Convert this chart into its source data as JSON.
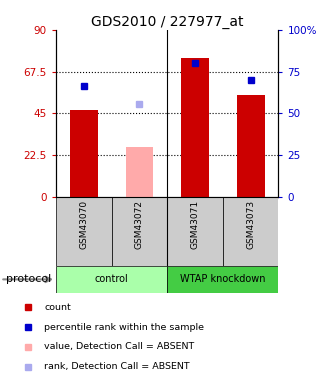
{
  "title": "GDS2010 / 227977_at",
  "samples": [
    "GSM43070",
    "GSM43072",
    "GSM43071",
    "GSM43073"
  ],
  "bar_values": [
    47,
    27,
    75,
    55
  ],
  "bar_colors": [
    "#cc0000",
    "#ffaaaa",
    "#cc0000",
    "#cc0000"
  ],
  "rank_values": [
    60,
    50,
    72,
    63
  ],
  "rank_colors": [
    "#0000cc",
    "#aaaaee",
    "#0000cc",
    "#0000cc"
  ],
  "groups": [
    {
      "label": "control",
      "samples": [
        0,
        1
      ],
      "color": "#aaffaa"
    },
    {
      "label": "WTAP knockdown",
      "samples": [
        2,
        3
      ],
      "color": "#44cc44"
    }
  ],
  "ylim_left": [
    0,
    90
  ],
  "ylim_right": [
    0,
    100
  ],
  "yticks_left": [
    0,
    22.5,
    45,
    67.5,
    90
  ],
  "ytick_labels_left": [
    "0",
    "22.5",
    "45",
    "67.5",
    "90"
  ],
  "ytick_labels_right": [
    "0",
    "25",
    "50",
    "75",
    "100%"
  ],
  "left_axis_color": "#cc0000",
  "right_axis_color": "#0000cc",
  "background_color": "#ffffff",
  "legend_items": [
    {
      "label": "count",
      "color": "#cc0000"
    },
    {
      "label": "percentile rank within the sample",
      "color": "#0000cc"
    },
    {
      "label": "value, Detection Call = ABSENT",
      "color": "#ffaaaa"
    },
    {
      "label": "rank, Detection Call = ABSENT",
      "color": "#aaaaee"
    }
  ],
  "protocol_label": "protocol"
}
